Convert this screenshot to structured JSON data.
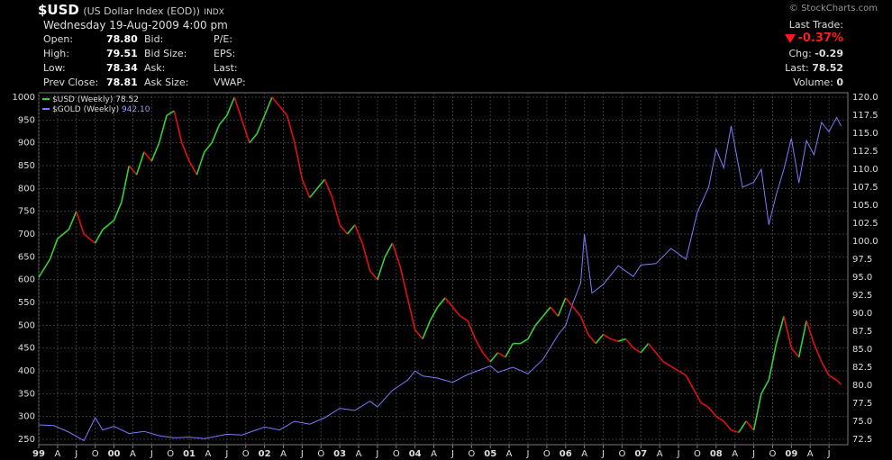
{
  "header": {
    "symbol": "$USD",
    "name": "(US Dollar Index (EOD))",
    "exchange": "INDX",
    "brand": "© StockCharts.com",
    "datetime": "Wednesday 19-Aug-2009  4:00 pm",
    "quote": {
      "open_label": "Open:",
      "open": "78.80",
      "high_label": "High:",
      "high": "79.51",
      "low_label": "Low:",
      "low": "78.34",
      "prev_label": "Prev Close:",
      "prev": "78.81",
      "bid_label": "Bid:",
      "bidsize_label": "Bid Size:",
      "ask_label": "Ask:",
      "asksize_label": "Ask Size:",
      "pe_label": "P/E:",
      "eps_label": "EPS:",
      "last_label": "Last:",
      "vwap_label": "VWAP:"
    },
    "last_trade": {
      "label": "Last Trade:",
      "pct": "-0.37%",
      "chg_label": "Chg:",
      "chg": "-0.29",
      "last_label": "Last:",
      "last": "78.52",
      "vol_label": "Volume:",
      "vol": "0"
    }
  },
  "chart_data": {
    "type": "line",
    "legend": [
      {
        "name": "$USD (Weekly)",
        "value": "78.52",
        "color": "#36d136"
      },
      {
        "name": "$GOLD (Weekly)",
        "value": "942.10",
        "color": "#7b7bff"
      }
    ],
    "legend_position": "top-left",
    "grid": true,
    "left_axis": {
      "min": 250,
      "max": 1000,
      "ticks": [
        "250",
        "300",
        "350",
        "400",
        "450",
        "500",
        "550",
        "600",
        "650",
        "700",
        "750",
        "800",
        "850",
        "900",
        "950",
        "1000"
      ]
    },
    "right_axis": {
      "min": 72.5,
      "max": 120.0,
      "ticks": [
        "72.5",
        "75.0",
        "77.5",
        "80.0",
        "82.5",
        "85.0",
        "87.5",
        "90.0",
        "92.5",
        "95.0",
        "97.5",
        "100.0",
        "102.5",
        "105.0",
        "107.5",
        "110.0",
        "112.5",
        "115.0",
        "117.5",
        "120.0"
      ]
    },
    "x_ticks": [
      {
        "t": 0.0,
        "label": "99",
        "bold": true
      },
      {
        "t": 0.25,
        "label": "A"
      },
      {
        "t": 0.5,
        "label": "J"
      },
      {
        "t": 0.75,
        "label": "O"
      },
      {
        "t": 1.0,
        "label": "00",
        "bold": true
      },
      {
        "t": 1.25,
        "label": "A"
      },
      {
        "t": 1.5,
        "label": "J"
      },
      {
        "t": 1.75,
        "label": "O"
      },
      {
        "t": 2.0,
        "label": "01",
        "bold": true
      },
      {
        "t": 2.25,
        "label": "A"
      },
      {
        "t": 2.5,
        "label": "J"
      },
      {
        "t": 2.75,
        "label": "O"
      },
      {
        "t": 3.0,
        "label": "02",
        "bold": true
      },
      {
        "t": 3.25,
        "label": "A"
      },
      {
        "t": 3.5,
        "label": "J"
      },
      {
        "t": 3.75,
        "label": "O"
      },
      {
        "t": 4.0,
        "label": "03",
        "bold": true
      },
      {
        "t": 4.25,
        "label": "A"
      },
      {
        "t": 4.5,
        "label": "J"
      },
      {
        "t": 4.75,
        "label": "O"
      },
      {
        "t": 5.0,
        "label": "04",
        "bold": true
      },
      {
        "t": 5.25,
        "label": "A"
      },
      {
        "t": 5.5,
        "label": "J"
      },
      {
        "t": 5.75,
        "label": "O"
      },
      {
        "t": 6.0,
        "label": "05",
        "bold": true
      },
      {
        "t": 6.25,
        "label": "A"
      },
      {
        "t": 6.5,
        "label": "J"
      },
      {
        "t": 6.75,
        "label": "O"
      },
      {
        "t": 7.0,
        "label": "06",
        "bold": true
      },
      {
        "t": 7.25,
        "label": "A"
      },
      {
        "t": 7.5,
        "label": "J"
      },
      {
        "t": 7.75,
        "label": "O"
      },
      {
        "t": 8.0,
        "label": "07",
        "bold": true
      },
      {
        "t": 8.25,
        "label": "A"
      },
      {
        "t": 8.5,
        "label": "J"
      },
      {
        "t": 8.75,
        "label": "O"
      },
      {
        "t": 9.0,
        "label": "08",
        "bold": true
      },
      {
        "t": 9.25,
        "label": "A"
      },
      {
        "t": 9.5,
        "label": "J"
      },
      {
        "t": 9.75,
        "label": "O"
      },
      {
        "t": 10.0,
        "label": "09",
        "bold": true
      },
      {
        "t": 10.25,
        "label": "A"
      },
      {
        "t": 10.5,
        "label": "J"
      }
    ],
    "series": [
      {
        "name": "$USD (Weekly)",
        "axis": "left",
        "up_color": "#36d136",
        "down_color": "#e01010",
        "points": [
          [
            0.0,
            605
          ],
          [
            0.15,
            645
          ],
          [
            0.25,
            690
          ],
          [
            0.4,
            710
          ],
          [
            0.5,
            750
          ],
          [
            0.6,
            700
          ],
          [
            0.75,
            680
          ],
          [
            0.85,
            710
          ],
          [
            1.0,
            730
          ],
          [
            1.1,
            770
          ],
          [
            1.2,
            850
          ],
          [
            1.3,
            830
          ],
          [
            1.4,
            880
          ],
          [
            1.5,
            860
          ],
          [
            1.6,
            900
          ],
          [
            1.7,
            960
          ],
          [
            1.8,
            970
          ],
          [
            1.9,
            900
          ],
          [
            2.0,
            860
          ],
          [
            2.1,
            830
          ],
          [
            2.2,
            880
          ],
          [
            2.3,
            900
          ],
          [
            2.4,
            940
          ],
          [
            2.5,
            960
          ],
          [
            2.6,
            1000
          ],
          [
            2.7,
            950
          ],
          [
            2.8,
            900
          ],
          [
            2.9,
            920
          ],
          [
            3.0,
            960
          ],
          [
            3.1,
            1000
          ],
          [
            3.2,
            980
          ],
          [
            3.3,
            960
          ],
          [
            3.4,
            900
          ],
          [
            3.5,
            820
          ],
          [
            3.6,
            780
          ],
          [
            3.7,
            800
          ],
          [
            3.8,
            820
          ],
          [
            3.9,
            780
          ],
          [
            4.0,
            720
          ],
          [
            4.1,
            700
          ],
          [
            4.2,
            720
          ],
          [
            4.3,
            680
          ],
          [
            4.4,
            620
          ],
          [
            4.5,
            600
          ],
          [
            4.6,
            650
          ],
          [
            4.7,
            680
          ],
          [
            4.8,
            630
          ],
          [
            4.9,
            560
          ],
          [
            5.0,
            490
          ],
          [
            5.1,
            470
          ],
          [
            5.2,
            510
          ],
          [
            5.3,
            540
          ],
          [
            5.4,
            560
          ],
          [
            5.5,
            540
          ],
          [
            5.6,
            520
          ],
          [
            5.7,
            510
          ],
          [
            5.8,
            470
          ],
          [
            5.9,
            440
          ],
          [
            6.0,
            420
          ],
          [
            6.1,
            440
          ],
          [
            6.2,
            430
          ],
          [
            6.3,
            460
          ],
          [
            6.4,
            460
          ],
          [
            6.5,
            470
          ],
          [
            6.6,
            500
          ],
          [
            6.7,
            520
          ],
          [
            6.8,
            540
          ],
          [
            6.9,
            520
          ],
          [
            7.0,
            560
          ],
          [
            7.1,
            540
          ],
          [
            7.2,
            520
          ],
          [
            7.3,
            480
          ],
          [
            7.4,
            460
          ],
          [
            7.5,
            480
          ],
          [
            7.6,
            470
          ],
          [
            7.7,
            465
          ],
          [
            7.8,
            470
          ],
          [
            7.9,
            450
          ],
          [
            8.0,
            440
          ],
          [
            8.1,
            460
          ],
          [
            8.2,
            440
          ],
          [
            8.3,
            420
          ],
          [
            8.4,
            410
          ],
          [
            8.5,
            400
          ],
          [
            8.6,
            390
          ],
          [
            8.7,
            360
          ],
          [
            8.8,
            330
          ],
          [
            8.9,
            320
          ],
          [
            9.0,
            300
          ],
          [
            9.1,
            290
          ],
          [
            9.2,
            270
          ],
          [
            9.3,
            265
          ],
          [
            9.4,
            290
          ],
          [
            9.5,
            270
          ],
          [
            9.6,
            350
          ],
          [
            9.7,
            380
          ],
          [
            9.8,
            460
          ],
          [
            9.9,
            520
          ],
          [
            10.0,
            450
          ],
          [
            10.1,
            430
          ],
          [
            10.2,
            510
          ],
          [
            10.3,
            460
          ],
          [
            10.4,
            420
          ],
          [
            10.5,
            390
          ],
          [
            10.6,
            380
          ],
          [
            10.66,
            370
          ]
        ]
      },
      {
        "name": "$GOLD (Weekly)",
        "axis": "right",
        "points": [
          [
            0.0,
            74.5
          ],
          [
            0.2,
            74.4
          ],
          [
            0.4,
            73.5
          ],
          [
            0.6,
            72.3
          ],
          [
            0.75,
            75.5
          ],
          [
            0.85,
            73.8
          ],
          [
            1.0,
            74.3
          ],
          [
            1.2,
            73.3
          ],
          [
            1.4,
            73.6
          ],
          [
            1.6,
            73.0
          ],
          [
            1.8,
            72.7
          ],
          [
            2.0,
            72.8
          ],
          [
            2.2,
            72.6
          ],
          [
            2.5,
            73.2
          ],
          [
            2.7,
            73.1
          ],
          [
            3.0,
            74.2
          ],
          [
            3.2,
            73.8
          ],
          [
            3.4,
            75.0
          ],
          [
            3.6,
            74.6
          ],
          [
            3.8,
            75.5
          ],
          [
            4.0,
            76.8
          ],
          [
            4.2,
            76.5
          ],
          [
            4.4,
            77.8
          ],
          [
            4.5,
            77.0
          ],
          [
            4.7,
            79.3
          ],
          [
            4.9,
            80.7
          ],
          [
            5.0,
            82.0
          ],
          [
            5.1,
            81.3
          ],
          [
            5.3,
            81.0
          ],
          [
            5.5,
            80.4
          ],
          [
            5.7,
            81.5
          ],
          [
            5.9,
            82.3
          ],
          [
            6.0,
            82.7
          ],
          [
            6.1,
            81.8
          ],
          [
            6.3,
            82.5
          ],
          [
            6.5,
            81.6
          ],
          [
            6.7,
            83.6
          ],
          [
            6.9,
            87.0
          ],
          [
            7.0,
            88.3
          ],
          [
            7.1,
            91.5
          ],
          [
            7.2,
            94.2
          ],
          [
            7.25,
            101.0
          ],
          [
            7.35,
            92.8
          ],
          [
            7.5,
            94.0
          ],
          [
            7.7,
            96.6
          ],
          [
            7.9,
            95.1
          ],
          [
            8.0,
            96.7
          ],
          [
            8.2,
            96.9
          ],
          [
            8.4,
            99.0
          ],
          [
            8.6,
            97.5
          ],
          [
            8.75,
            104.0
          ],
          [
            8.9,
            107.5
          ],
          [
            9.0,
            112.8
          ],
          [
            9.1,
            110.2
          ],
          [
            9.2,
            116.0
          ],
          [
            9.35,
            107.5
          ],
          [
            9.5,
            108.2
          ],
          [
            9.6,
            110.0
          ],
          [
            9.7,
            102.3
          ],
          [
            9.8,
            106.5
          ],
          [
            9.9,
            110.0
          ],
          [
            10.0,
            114.3
          ],
          [
            10.1,
            108.1
          ],
          [
            10.2,
            114.0
          ],
          [
            10.3,
            112.0
          ],
          [
            10.4,
            116.5
          ],
          [
            10.5,
            115.2
          ],
          [
            10.6,
            117.2
          ],
          [
            10.66,
            116.0
          ]
        ]
      }
    ]
  }
}
